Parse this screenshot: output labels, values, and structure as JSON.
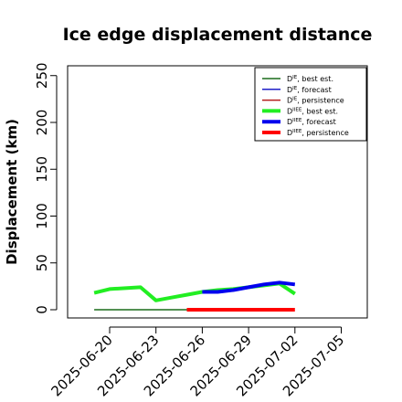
{
  "chart_data": {
    "type": "line",
    "title": "Ice edge displacement distance",
    "xlabel": "",
    "ylabel": "Displacement (km)",
    "ylim": [
      0,
      260
    ],
    "xlim": [
      "2025-06-18",
      "2025-07-07"
    ],
    "y_ticks": [
      "0",
      "50",
      "100",
      "150",
      "200",
      "250"
    ],
    "x_ticks": [
      {
        "date": "2025-06-20",
        "label": "2025-06-20",
        "color": "#000000"
      },
      {
        "date": "2025-06-23",
        "label": "2025-06-23",
        "color": "#000000"
      },
      {
        "date": "2025-06-26",
        "label": "2025-06-26",
        "color": "#228b22"
      },
      {
        "date": "2025-06-29",
        "label": "2025-06-29",
        "color": "#000000"
      },
      {
        "date": "2025-07-02",
        "label": "2025-07-02",
        "color": "#000000"
      },
      {
        "date": "2025-07-05",
        "label": "2025-07-05",
        "color": "#000000"
      }
    ],
    "grid": false,
    "legend_position": "top-right",
    "series": [
      {
        "name": "D^IE, best est.",
        "base": "D",
        "sup": "IE",
        "suffix": ", best est.",
        "color": "#1a6b1a",
        "width": 1.5,
        "x": [
          "2025-06-19",
          "2025-06-20",
          "2025-06-21",
          "2025-06-22",
          "2025-06-23",
          "2025-06-24",
          "2025-06-25",
          "2025-06-26",
          "2025-06-27"
        ],
        "y": [
          0,
          0,
          0,
          0,
          0,
          0,
          0,
          0,
          0
        ]
      },
      {
        "name": "D^IE, forecast",
        "base": "D",
        "sup": "IE",
        "suffix": ", forecast",
        "color": "#1e1ec8",
        "width": 1.5,
        "x": [],
        "y": []
      },
      {
        "name": "D^IE, persistence",
        "base": "D",
        "sup": "IE",
        "suffix": ", persistence",
        "color": "#b41e1e",
        "width": 1.5,
        "x": [],
        "y": []
      },
      {
        "name": "D^IIEE, best est.",
        "base": "D",
        "sup": "IIEE",
        "suffix": ", best est.",
        "color": "#22ee22",
        "width": 4,
        "x": [
          "2025-06-19",
          "2025-06-20",
          "2025-06-22",
          "2025-06-23",
          "2025-06-24",
          "2025-06-25",
          "2025-06-26",
          "2025-06-27",
          "2025-06-28",
          "2025-06-29",
          "2025-06-30",
          "2025-07-01",
          "2025-07-02"
        ],
        "y": [
          18,
          22,
          24,
          10,
          13,
          16,
          19,
          21,
          22,
          24,
          26,
          28,
          17
        ]
      },
      {
        "name": "D^IIEE, forecast",
        "base": "D",
        "sup": "IIEE",
        "suffix": ", forecast",
        "color": "#0000ee",
        "width": 4,
        "x": [
          "2025-06-26",
          "2025-06-27",
          "2025-06-28",
          "2025-06-29",
          "2025-06-30",
          "2025-07-01",
          "2025-07-02"
        ],
        "y": [
          19,
          19,
          21,
          24,
          27,
          29,
          27
        ]
      },
      {
        "name": "D^IIEE, persistence",
        "base": "D",
        "sup": "IIEE",
        "suffix": ", persistence",
        "color": "#ff0000",
        "width": 4,
        "x": [
          "2025-06-25",
          "2025-06-26",
          "2025-06-27",
          "2025-06-28",
          "2025-06-29",
          "2025-06-30",
          "2025-07-01",
          "2025-07-02"
        ],
        "y": [
          0,
          0,
          0,
          0,
          0,
          0,
          0,
          0
        ]
      }
    ]
  }
}
